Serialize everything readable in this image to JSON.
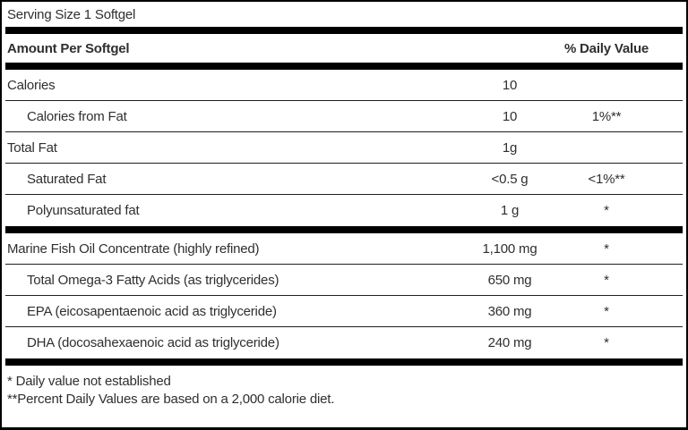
{
  "table": {
    "serving_size": "Serving Size 1 Softgel",
    "header": {
      "amount_label": "Amount Per Softgel",
      "dv_label": "% Daily Value"
    },
    "rows": [
      {
        "name": "Calories",
        "amount": "10",
        "dv": "",
        "indent": false,
        "section_end": false
      },
      {
        "name": "Calories from Fat",
        "amount": "10",
        "dv": "1%**",
        "indent": true,
        "section_end": false
      },
      {
        "name": "Total Fat",
        "amount": "1g",
        "dv": "",
        "indent": false,
        "section_end": false
      },
      {
        "name": "Saturated Fat",
        "amount": "<0.5 g",
        "dv": "<1%**",
        "indent": true,
        "section_end": false
      },
      {
        "name": "Polyunsaturated fat",
        "amount": "1 g",
        "dv": "*",
        "indent": true,
        "section_end": true
      },
      {
        "name": "Marine Fish Oil Concentrate (highly refined)",
        "amount": "1,100 mg",
        "dv": "*",
        "indent": false,
        "section_end": false
      },
      {
        "name": "Total Omega-3 Fatty Acids (as triglycerides)",
        "amount": "650 mg",
        "dv": "*",
        "indent": true,
        "section_end": false
      },
      {
        "name": "EPA (eicosapentaenoic acid as triglyceride)",
        "amount": "360 mg",
        "dv": "*",
        "indent": true,
        "section_end": false
      },
      {
        "name": "DHA (docosahexaenoic acid as triglyceride)",
        "amount": "240 mg",
        "dv": "*",
        "indent": true,
        "section_end": false
      }
    ],
    "footnotes": [
      "* Daily value not established",
      "**Percent Daily Values are based on a 2,000 calorie diet."
    ]
  },
  "colors": {
    "bar": "#000000",
    "border": "#000000",
    "text": "#2f2f2f"
  }
}
